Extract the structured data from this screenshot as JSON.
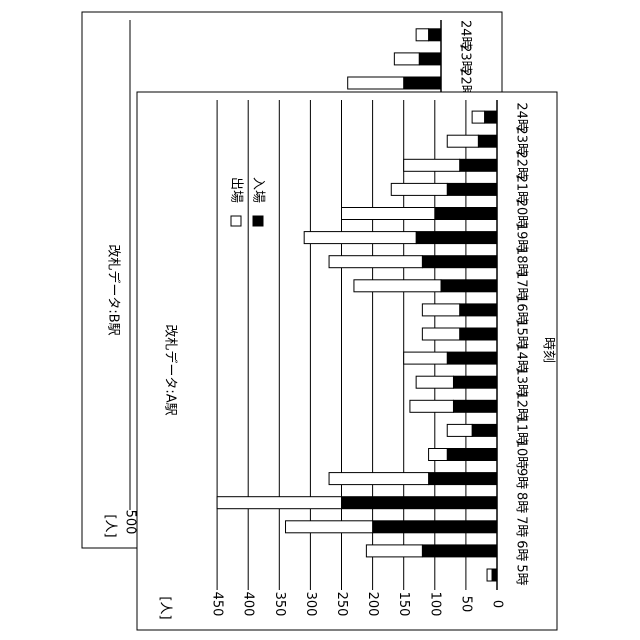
{
  "chart_data": [
    {
      "type": "bar",
      "stacked": true,
      "title": "改札データ:A駅",
      "categories": [
        "5時",
        "6時",
        "7時",
        "8時",
        "9時",
        "10時",
        "11時",
        "12時",
        "13時",
        "14時",
        "15時",
        "16時",
        "17時",
        "18時",
        "19時",
        "20時",
        "21時",
        "22時",
        "23時",
        "24時"
      ],
      "series": [
        {
          "name": "入場",
          "color": "#000000",
          "values": [
            8,
            120,
            200,
            250,
            110,
            80,
            40,
            70,
            70,
            80,
            60,
            60,
            90,
            120,
            130,
            100,
            80,
            60,
            30,
            20
          ]
        },
        {
          "name": "出場",
          "color": "#ffffff",
          "values": [
            8,
            90,
            140,
            200,
            160,
            30,
            40,
            70,
            60,
            70,
            60,
            60,
            140,
            150,
            180,
            150,
            90,
            90,
            50,
            20
          ]
        }
      ],
      "xlim": [
        0,
        500
      ],
      "xticks": [
        0,
        50,
        100,
        150,
        200,
        250,
        300,
        350,
        400,
        450
      ],
      "x_label": "時刻",
      "value_axis_label": "[人]",
      "grid": true
    },
    {
      "type": "bar",
      "stacked": true,
      "title": "改札データ:B駅",
      "categories": [
        "22時",
        "23時",
        "24時"
      ],
      "series": [
        {
          "name": "入場",
          "color": "#000000",
          "values": [
            60,
            35,
            20
          ]
        },
        {
          "name": "出場",
          "color": "#ffffff",
          "values": [
            90,
            40,
            20
          ]
        }
      ],
      "xlim": [
        0,
        500
      ],
      "xticks": [
        500
      ],
      "value_axis_label": "[人]",
      "grid": true
    }
  ]
}
